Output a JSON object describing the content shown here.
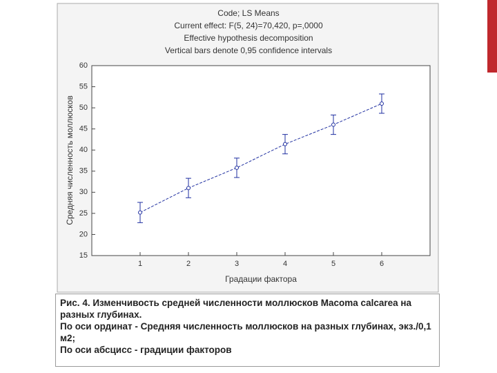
{
  "chart_data": {
    "type": "line",
    "title_lines": [
      "Code; LS Means",
      "Current effect: F(5, 24)=70,420, p=,0000",
      "Effective hypothesis decomposition",
      "Vertical bars denote 0,95 confidence intervals"
    ],
    "x_label": "Градации фактора",
    "y_label": "Средняя численность моллюсков",
    "categories": [
      "1",
      "2",
      "3",
      "4",
      "5",
      "6"
    ],
    "series": [
      {
        "color": "#1f2fa0",
        "values": [
          25.2,
          31.0,
          35.8,
          41.4,
          46.0,
          51.0
        ],
        "errors": [
          2.4,
          2.3,
          2.3,
          2.3,
          2.3,
          2.3
        ]
      }
    ],
    "ylim": [
      15,
      60
    ],
    "yticks": [
      15,
      20,
      25,
      30,
      35,
      40,
      45,
      50,
      55,
      60
    ]
  },
  "caption": {
    "lines": [
      "Рис. 4. Изменчивость средней численности моллюсков Macoma calcarea на разных глубинах.",
      "По оси ординат - Средняя численность моллюсков на разных глубинах, экз./0,1 м2;",
      "По оси абсцисс - градиции факторов"
    ]
  }
}
